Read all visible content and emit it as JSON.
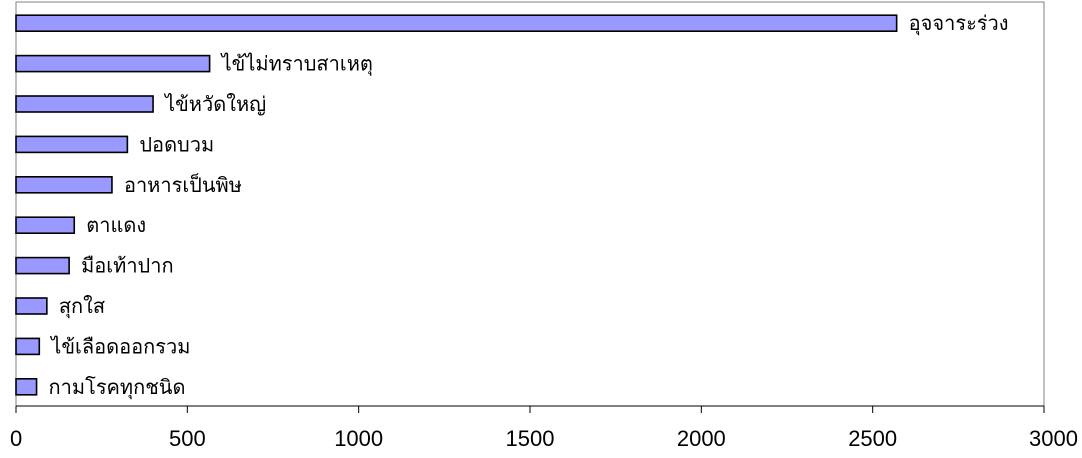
{
  "chart_data": {
    "type": "bar",
    "orientation": "horizontal",
    "categories": [
      "อุจจาระร่วง",
      "ไข้ไม่ทราบสาเหตุ",
      "ไข้หวัดใหญ่",
      "ปอดบวม",
      "อาหารเป็นพิษ",
      "ตาแดง",
      "มือเท้าปาก",
      "สุกใส",
      "ไข้เลือดออกรวม",
      "กามโรคทุกชนิด"
    ],
    "values": [
      2570,
      565,
      400,
      325,
      280,
      170,
      155,
      90,
      68,
      60
    ],
    "xlim": [
      0,
      3000
    ],
    "xticks": [
      "0",
      "500",
      "1000",
      "1500",
      "2000",
      "2500",
      "3000"
    ],
    "xtick_values": [
      0,
      500,
      1000,
      1500,
      2000,
      2500,
      3000
    ],
    "title": "",
    "xlabel": "",
    "ylabel": "",
    "grid": false,
    "legend": "none",
    "bar_color": "#9999ff",
    "bar_edge_color": "#000000"
  }
}
